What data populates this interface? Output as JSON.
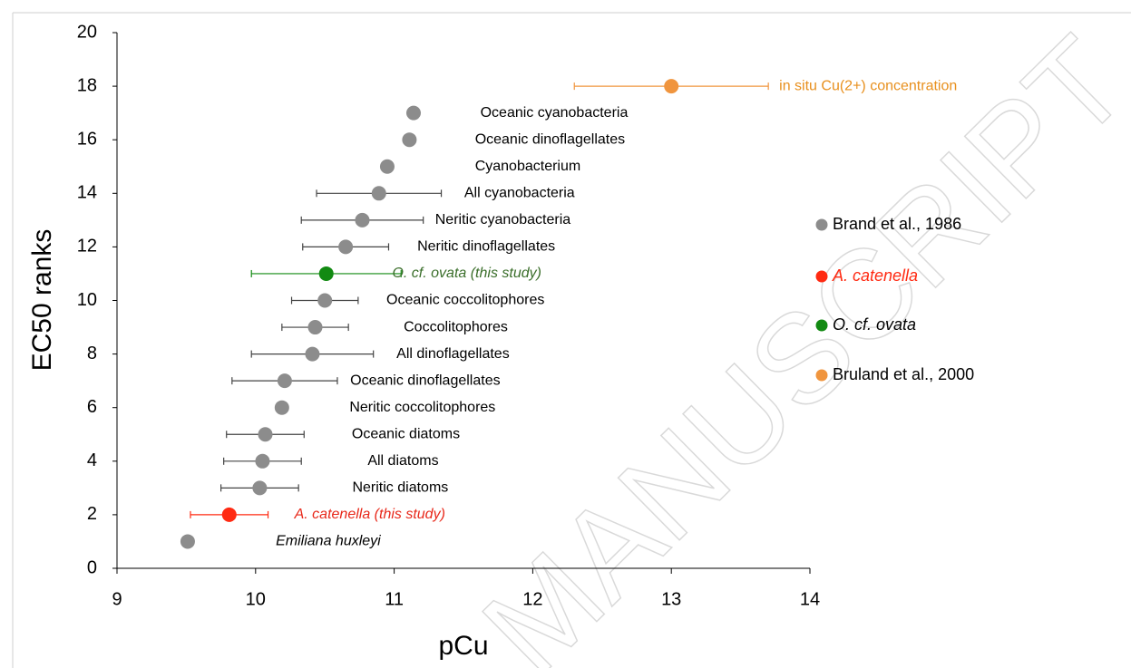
{
  "chart_data": {
    "type": "scatter",
    "watermark": "MANUSCRIPT",
    "xlabel": "pCu",
    "ylabel": "EC50 ranks",
    "xlim": [
      9,
      14
    ],
    "ylim": [
      0,
      20
    ],
    "xticks": [
      9,
      10,
      11,
      12,
      13,
      14
    ],
    "yticks": [
      0,
      2,
      4,
      6,
      8,
      10,
      12,
      14,
      16,
      18,
      20
    ],
    "series": [
      {
        "name": "Brand et al., 1986",
        "color": "#8c8c8c",
        "label_color": "#000000",
        "italic": false,
        "x": [
          9.51,
          10.03,
          10.05,
          10.07,
          10.19,
          10.21,
          10.41,
          10.43,
          10.5,
          10.65,
          10.77,
          10.89,
          10.95,
          11.11,
          11.14
        ],
        "values": [
          1,
          3,
          4,
          5,
          6,
          7,
          8,
          9,
          10,
          12,
          13,
          14,
          15,
          16,
          17
        ],
        "xerr": [
          null,
          0.28,
          0.28,
          0.28,
          null,
          0.38,
          0.44,
          0.24,
          0.24,
          0.31,
          0.44,
          0.45,
          null,
          null,
          null
        ],
        "labels": [
          "Emiliana huxleyi",
          "Neritic diatoms",
          "All diatoms",
          "Oceanic diatoms",
          "Neritic coccolitophores",
          "Oceanic dinoflagellates",
          "All dinoflagellates",
          "Coccolitophores",
          "Oceanic coccolitophores",
          "Neritic dinoflagellates",
          "Neritic cyanobacteria",
          "All cyanobacteria",
          "Cyanobacterium",
          "Oceanic dinoflagellates",
          "Oceanic cyanobacteria"
        ]
      },
      {
        "name": "A. catenella",
        "color": "#ff2a12",
        "label_color": "#e8281a",
        "italic": true,
        "x": [
          9.81
        ],
        "values": [
          2
        ],
        "xerr": [
          0.28
        ],
        "labels": [
          "A. catenella (this study)"
        ]
      },
      {
        "name": "O. cf. ovata",
        "color": "#128a12",
        "label_color": "#3a6e2a",
        "italic": true,
        "x": [
          10.51
        ],
        "values": [
          11
        ],
        "xerr": [
          0.54
        ],
        "labels": [
          "O. cf. ovata (this study)"
        ]
      },
      {
        "name": "Bruland et al., 2000",
        "color": "#f0953e",
        "label_color": "#e8901e",
        "italic": false,
        "x": [
          13.0
        ],
        "values": [
          18
        ],
        "xerr": [
          0.7
        ],
        "labels": [
          "in situ Cu(2+) concentration"
        ]
      }
    ]
  }
}
